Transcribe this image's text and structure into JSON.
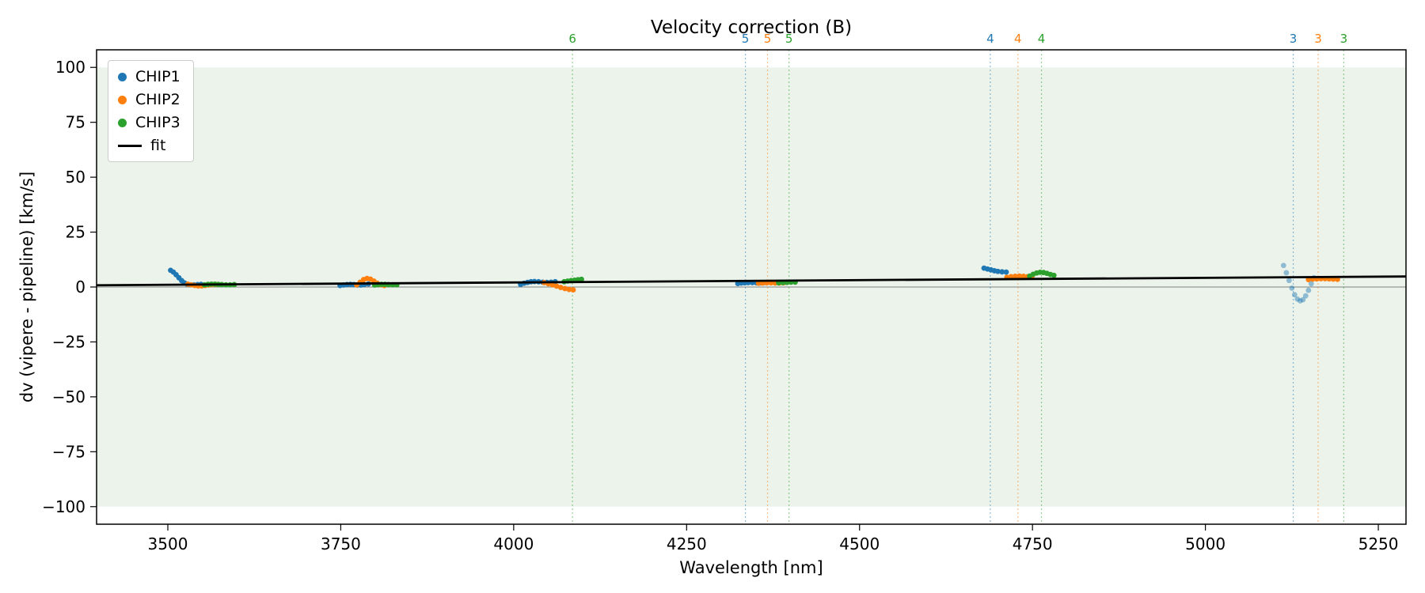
{
  "chart_data": {
    "type": "scatter",
    "title": "Velocity correction (B)",
    "xlabel": "Wavelength [nm]",
    "ylabel": "dv (vipere - pipeline) [km/s]",
    "xlim": [
      3397,
      5290
    ],
    "ylim": [
      -108,
      108
    ],
    "xticks": [
      3500,
      3750,
      4000,
      4250,
      4500,
      4750,
      5000,
      5250
    ],
    "yticks": [
      -100,
      -75,
      -50,
      -25,
      0,
      25,
      50,
      75,
      100
    ],
    "grid": false,
    "legend_position": "upper left",
    "band": {
      "ymin": -100,
      "ymax": 100,
      "color": "#ebf3eb"
    },
    "zero_line": {
      "y": 0,
      "color": "#808080"
    },
    "fit": {
      "label": "fit",
      "color": "#000000",
      "x": [
        3397,
        5290
      ],
      "y": [
        0.8,
        4.8
      ]
    },
    "series": [
      {
        "name": "CHIP1",
        "color": "#1f77b4",
        "segments": [
          {
            "alpha": 1,
            "points": [
              [
                3504,
                7.6
              ],
              [
                3508,
                6.8
              ],
              [
                3512,
                5.6
              ],
              [
                3516,
                4.2
              ],
              [
                3520,
                2.9
              ],
              [
                3524,
                1.9
              ],
              [
                3528,
                1.3
              ],
              [
                3533,
                1.0
              ],
              [
                3538,
                1.0
              ],
              [
                3543,
                1.1
              ],
              [
                3548,
                1.2
              ]
            ]
          },
          {
            "alpha": 1,
            "points": [
              [
                3749,
                0.7
              ],
              [
                3754,
                0.9
              ],
              [
                3759,
                1.1
              ],
              [
                3764,
                1.2
              ],
              [
                3769,
                1.1
              ],
              [
                3774,
                0.9
              ],
              [
                3779,
                0.9
              ],
              [
                3784,
                1.1
              ],
              [
                3790,
                1.4
              ]
            ]
          },
          {
            "alpha": 1,
            "points": [
              [
                4010,
                1.2
              ],
              [
                4015,
                1.7
              ],
              [
                4020,
                2.1
              ],
              [
                4025,
                2.4
              ],
              [
                4030,
                2.5
              ],
              [
                4036,
                2.4
              ],
              [
                4042,
                2.2
              ],
              [
                4048,
                2.1
              ],
              [
                4054,
                2.2
              ],
              [
                4060,
                2.4
              ]
            ]
          },
          {
            "alpha": 1,
            "points": [
              [
                4324,
                1.6
              ],
              [
                4329,
                1.8
              ],
              [
                4334,
                1.9
              ],
              [
                4339,
                2.0
              ],
              [
                4345,
                2.0
              ],
              [
                4351,
                1.9
              ],
              [
                4357,
                1.9
              ],
              [
                4362,
                2.0
              ]
            ]
          },
          {
            "alpha": 1,
            "points": [
              [
                4680,
                8.6
              ],
              [
                4685,
                8.2
              ],
              [
                4690,
                7.8
              ],
              [
                4695,
                7.4
              ],
              [
                4700,
                7.1
              ],
              [
                4706,
                6.9
              ],
              [
                4712,
                6.8
              ]
            ]
          },
          {
            "alpha": 0.45,
            "points": [
              [
                5113,
                9.8
              ],
              [
                5117,
                6.5
              ],
              [
                5121,
                3.0
              ],
              [
                5125,
                -0.5
              ],
              [
                5129,
                -3.5
              ],
              [
                5133,
                -5.5
              ],
              [
                5137,
                -6.3
              ],
              [
                5141,
                -5.8
              ],
              [
                5145,
                -4.0
              ],
              [
                5149,
                -1.5
              ],
              [
                5153,
                1.5
              ],
              [
                5157,
                4.2
              ]
            ]
          }
        ]
      },
      {
        "name": "CHIP2",
        "color": "#ff7f0e",
        "segments": [
          {
            "alpha": 1,
            "points": [
              [
                3529,
                1.3
              ],
              [
                3534,
                1.0
              ],
              [
                3539,
                0.7
              ],
              [
                3544,
                0.5
              ],
              [
                3549,
                0.5
              ],
              [
                3554,
                0.7
              ],
              [
                3559,
                0.9
              ],
              [
                3564,
                1.1
              ],
              [
                3569,
                1.2
              ]
            ]
          },
          {
            "alpha": 1,
            "points": [
              [
                3773,
                1.0
              ],
              [
                3778,
                2.2
              ],
              [
                3783,
                3.4
              ],
              [
                3788,
                3.9
              ],
              [
                3793,
                3.6
              ],
              [
                3798,
                2.7
              ],
              [
                3803,
                1.7
              ],
              [
                3808,
                1.0
              ],
              [
                3813,
                0.7
              ]
            ]
          },
          {
            "alpha": 1,
            "points": [
              [
                4044,
                2.0
              ],
              [
                4050,
                1.5
              ],
              [
                4056,
                1.0
              ],
              [
                4062,
                0.4
              ],
              [
                4068,
                -0.2
              ],
              [
                4074,
                -0.7
              ],
              [
                4080,
                -1.1
              ],
              [
                4086,
                -1.3
              ]
            ]
          },
          {
            "alpha": 1,
            "points": [
              [
                4354,
                1.7
              ],
              [
                4360,
                1.8
              ],
              [
                4366,
                1.9
              ],
              [
                4372,
                1.9
              ],
              [
                4378,
                1.8
              ],
              [
                4384,
                1.8
              ],
              [
                4390,
                1.9
              ]
            ]
          },
          {
            "alpha": 1,
            "points": [
              [
                4713,
                4.4
              ],
              [
                4719,
                4.7
              ],
              [
                4725,
                4.9
              ],
              [
                4731,
                5.0
              ],
              [
                4737,
                4.9
              ],
              [
                4743,
                4.7
              ],
              [
                4749,
                4.6
              ]
            ]
          },
          {
            "alpha": 1,
            "points": [
              [
                5149,
                3.4
              ],
              [
                5155,
                3.6
              ],
              [
                5161,
                3.7
              ],
              [
                5167,
                3.8
              ],
              [
                5173,
                3.8
              ],
              [
                5179,
                3.7
              ],
              [
                5185,
                3.6
              ],
              [
                5191,
                3.5
              ]
            ]
          }
        ]
      },
      {
        "name": "CHIP3",
        "color": "#2ca02c",
        "segments": [
          {
            "alpha": 1,
            "points": [
              [
                3553,
                1.0
              ],
              [
                3558,
                1.2
              ],
              [
                3563,
                1.3
              ],
              [
                3568,
                1.3
              ],
              [
                3573,
                1.2
              ],
              [
                3578,
                1.1
              ],
              [
                3584,
                1.0
              ],
              [
                3590,
                1.0
              ],
              [
                3596,
                1.1
              ]
            ]
          },
          {
            "alpha": 1,
            "points": [
              [
                3799,
                0.9
              ],
              [
                3804,
                1.1
              ],
              [
                3809,
                1.2
              ],
              [
                3814,
                1.2
              ],
              [
                3819,
                1.1
              ],
              [
                3825,
                1.0
              ],
              [
                3831,
                1.0
              ]
            ]
          },
          {
            "alpha": 1,
            "points": [
              [
                4073,
                2.4
              ],
              [
                4078,
                2.7
              ],
              [
                4083,
                2.9
              ],
              [
                4088,
                3.1
              ],
              [
                4093,
                3.3
              ],
              [
                4098,
                3.5
              ]
            ]
          },
          {
            "alpha": 1,
            "points": [
              [
                4383,
                1.9
              ],
              [
                4389,
                2.0
              ],
              [
                4395,
                2.1
              ],
              [
                4401,
                2.2
              ],
              [
                4407,
                2.2
              ]
            ]
          },
          {
            "alpha": 1,
            "points": [
              [
                4746,
                5.0
              ],
              [
                4751,
                5.8
              ],
              [
                4756,
                6.4
              ],
              [
                4761,
                6.7
              ],
              [
                4766,
                6.6
              ],
              [
                4771,
                6.2
              ],
              [
                4776,
                5.7
              ],
              [
                4781,
                5.3
              ]
            ]
          }
        ]
      }
    ],
    "order_markers": [
      {
        "order": "6",
        "series": "CHIP3",
        "x": 4085
      },
      {
        "order": "5",
        "series": "CHIP1",
        "x": 4335
      },
      {
        "order": "5",
        "series": "CHIP2",
        "x": 4367
      },
      {
        "order": "5",
        "series": "CHIP3",
        "x": 4398
      },
      {
        "order": "4",
        "series": "CHIP1",
        "x": 4689
      },
      {
        "order": "4",
        "series": "CHIP2",
        "x": 4729
      },
      {
        "order": "4",
        "series": "CHIP3",
        "x": 4763
      },
      {
        "order": "3",
        "series": "CHIP1",
        "x": 5127
      },
      {
        "order": "3",
        "series": "CHIP2",
        "x": 5163
      },
      {
        "order": "3",
        "series": "CHIP3",
        "x": 5200
      }
    ],
    "legend_entries": [
      "CHIP1",
      "CHIP2",
      "CHIP3",
      "fit"
    ]
  }
}
